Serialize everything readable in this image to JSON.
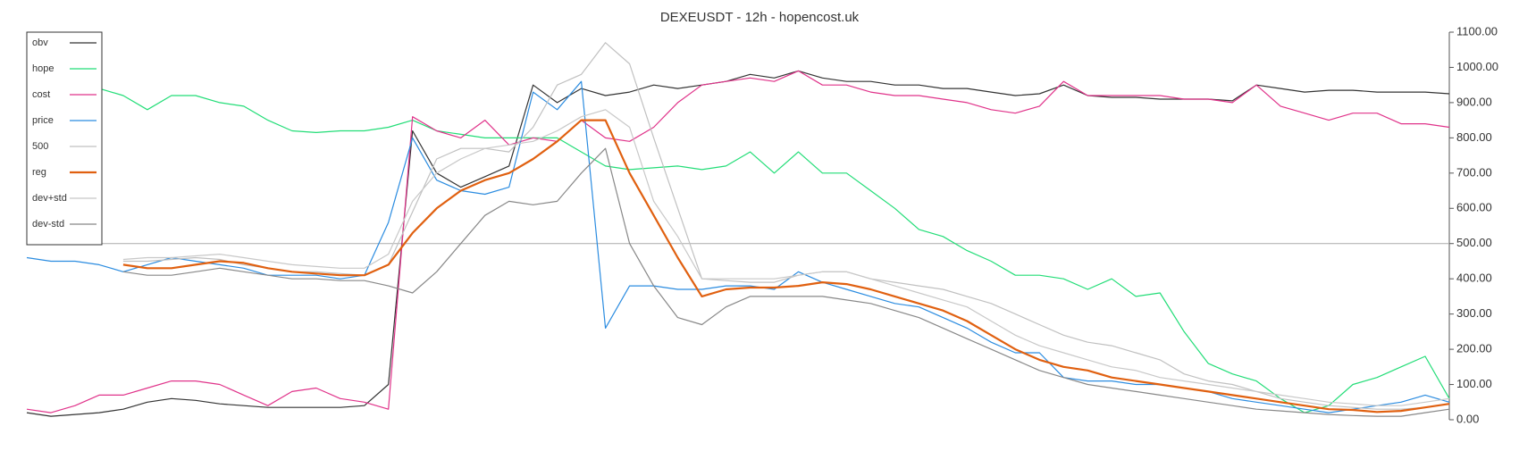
{
  "chart_data": {
    "type": "line",
    "title": "DEXEUSDT - 12h - hopencost.uk",
    "categories": [
      null,
      null,
      null,
      null,
      null,
      null,
      null,
      null,
      null,
      null,
      null,
      null,
      null,
      null,
      null,
      null,
      null,
      null,
      null,
      null,
      null,
      null,
      null,
      null,
      null,
      null,
      null,
      null,
      null,
      null,
      null,
      null,
      null,
      null,
      null,
      null,
      null,
      null,
      null,
      null,
      null,
      null,
      null,
      null,
      null,
      null,
      null,
      null,
      null,
      null,
      null,
      null,
      null,
      null,
      null,
      null,
      null,
      null,
      null,
      null
    ],
    "ylim": [
      0,
      1100
    ],
    "yticks": [
      {
        "value": 0,
        "label": "0.00"
      },
      {
        "value": 100,
        "label": "100.00"
      },
      {
        "value": 200,
        "label": "200.00"
      },
      {
        "value": 300,
        "label": "300.00"
      },
      {
        "value": 400,
        "label": "400.00"
      },
      {
        "value": 500,
        "label": "500.00"
      },
      {
        "value": 600,
        "label": "600.00"
      },
      {
        "value": 700,
        "label": "700.00"
      },
      {
        "value": 800,
        "label": "800.00"
      },
      {
        "value": 900,
        "label": "900.00"
      },
      {
        "value": 1000,
        "label": "1000.00"
      },
      {
        "value": 1100,
        "label": "1100.00"
      }
    ],
    "hline": 500,
    "legend": "upper left",
    "series": [
      {
        "name": "obv",
        "color": "#333333",
        "values": [
          20,
          10,
          15,
          20,
          30,
          50,
          60,
          55,
          45,
          40,
          35,
          35,
          35,
          35,
          40,
          100,
          820,
          700,
          660,
          690,
          720,
          950,
          900,
          940,
          920,
          930,
          950,
          940,
          950,
          960,
          980,
          970,
          990,
          970,
          960,
          960,
          950,
          950,
          940,
          940,
          930,
          920,
          925,
          950,
          920,
          915,
          915,
          910,
          910,
          910,
          905,
          950,
          940,
          930,
          935,
          935,
          930,
          930,
          930,
          925
        ]
      },
      {
        "name": "hope",
        "color": "#22dd77",
        "values": [
          null,
          null,
          null,
          940,
          920,
          880,
          920,
          920,
          900,
          890,
          850,
          820,
          815,
          820,
          820,
          830,
          850,
          820,
          810,
          800,
          800,
          800,
          800,
          760,
          720,
          710,
          715,
          720,
          710,
          720,
          760,
          700,
          760,
          700,
          700,
          650,
          600,
          540,
          520,
          480,
          450,
          410,
          410,
          400,
          370,
          400,
          350,
          360,
          250,
          160,
          130,
          110,
          60,
          20,
          40,
          100,
          120,
          150,
          180,
          60
        ]
      },
      {
        "name": "cost",
        "color": "#e0338a",
        "values": [
          30,
          20,
          40,
          70,
          70,
          90,
          110,
          110,
          100,
          70,
          40,
          80,
          90,
          60,
          50,
          30,
          860,
          820,
          800,
          850,
          780,
          800,
          790,
          850,
          800,
          790,
          830,
          900,
          950,
          960,
          970,
          960,
          990,
          950,
          950,
          930,
          920,
          920,
          910,
          900,
          880,
          870,
          890,
          960,
          920,
          920,
          920,
          920,
          910,
          910,
          900,
          950,
          890,
          870,
          850,
          870,
          870,
          840,
          840,
          830
        ]
      },
      {
        "name": "price",
        "color": "#2b8ce0",
        "values": [
          460,
          450,
          450,
          440,
          420,
          440,
          460,
          450,
          440,
          430,
          410,
          410,
          410,
          400,
          410,
          560,
          800,
          680,
          650,
          640,
          660,
          930,
          880,
          960,
          260,
          380,
          380,
          370,
          370,
          380,
          380,
          370,
          420,
          390,
          370,
          350,
          330,
          320,
          290,
          260,
          220,
          190,
          190,
          120,
          110,
          110,
          100,
          100,
          90,
          80,
          60,
          50,
          40,
          30,
          20,
          30,
          40,
          50,
          70,
          50
        ]
      },
      {
        "name": "500",
        "color": "#c0c0c0",
        "values": [
          null,
          null,
          null,
          null,
          450,
          450,
          455,
          460,
          455,
          440,
          430,
          420,
          420,
          415,
          410,
          440,
          590,
          740,
          770,
          770,
          760,
          830,
          950,
          980,
          1070,
          1010,
          800,
          600,
          400,
          395,
          390,
          390,
          410,
          420,
          420,
          400,
          390,
          380,
          370,
          350,
          330,
          300,
          270,
          240,
          220,
          210,
          190,
          170,
          130,
          110,
          100,
          80,
          60,
          50,
          40,
          35,
          30,
          30,
          35,
          45
        ]
      },
      {
        "name": "reg",
        "color": "#e06010",
        "values": [
          null,
          null,
          null,
          null,
          440,
          430,
          430,
          440,
          450,
          445,
          430,
          420,
          415,
          410,
          410,
          440,
          530,
          600,
          650,
          680,
          700,
          740,
          790,
          850,
          850,
          700,
          580,
          460,
          350,
          370,
          375,
          375,
          380,
          390,
          385,
          370,
          350,
          330,
          310,
          280,
          240,
          200,
          170,
          150,
          140,
          120,
          110,
          100,
          90,
          80,
          70,
          60,
          50,
          40,
          30,
          28,
          22,
          25,
          35,
          45
        ]
      },
      {
        "name": "dev+std",
        "color": "#c8c8c8",
        "values": [
          null,
          null,
          null,
          null,
          455,
          460,
          460,
          465,
          470,
          460,
          450,
          440,
          435,
          430,
          430,
          470,
          620,
          700,
          740,
          770,
          780,
          790,
          820,
          860,
          880,
          830,
          620,
          520,
          400,
          400,
          400,
          400,
          410,
          420,
          420,
          400,
          380,
          360,
          340,
          320,
          280,
          240,
          210,
          190,
          170,
          150,
          140,
          120,
          110,
          100,
          90,
          80,
          70,
          60,
          50,
          45,
          40,
          40,
          50,
          60
        ]
      },
      {
        "name": "dev-std",
        "color": "#888888",
        "values": [
          null,
          null,
          null,
          null,
          420,
          410,
          410,
          420,
          430,
          420,
          410,
          400,
          400,
          395,
          395,
          380,
          360,
          420,
          500,
          580,
          620,
          610,
          620,
          700,
          770,
          500,
          380,
          290,
          270,
          320,
          350,
          350,
          350,
          350,
          340,
          330,
          310,
          290,
          260,
          230,
          200,
          170,
          140,
          120,
          100,
          90,
          80,
          70,
          60,
          50,
          40,
          30,
          25,
          20,
          15,
          12,
          10,
          10,
          20,
          30
        ]
      }
    ]
  }
}
